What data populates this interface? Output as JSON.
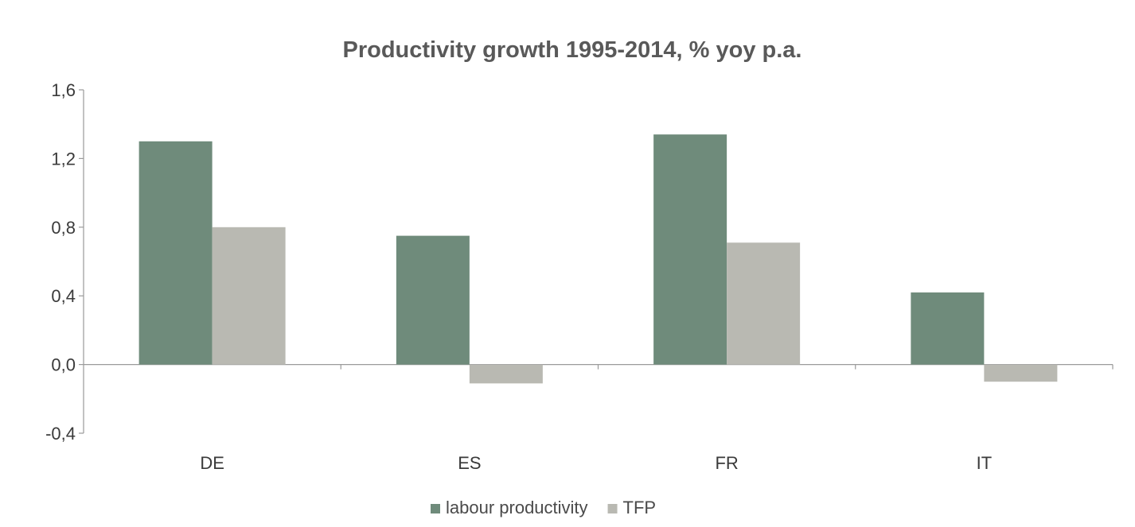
{
  "chart_data": {
    "type": "bar",
    "title": "Productivity growth 1995-2014, % yoy p.a.",
    "xlabel": "",
    "ylabel": "",
    "categories": [
      "DE",
      "ES",
      "FR",
      "IT"
    ],
    "series": [
      {
        "name": "labour productivity",
        "color": "#6f8b7b",
        "values": [
          1.3,
          0.75,
          1.34,
          0.42
        ]
      },
      {
        "name": "TFP",
        "color": "#b9b9b2",
        "values": [
          0.8,
          -0.11,
          0.71,
          -0.1
        ]
      }
    ],
    "ylim": [
      -0.4,
      1.6
    ],
    "yticks": [
      -0.4,
      0.0,
      0.4,
      0.8,
      1.2,
      1.6
    ],
    "ytick_labels": [
      "-0,4",
      "0,0",
      "0,4",
      "0,8",
      "1,2",
      "1,6"
    ],
    "grid": false,
    "legend_position": "bottom"
  }
}
